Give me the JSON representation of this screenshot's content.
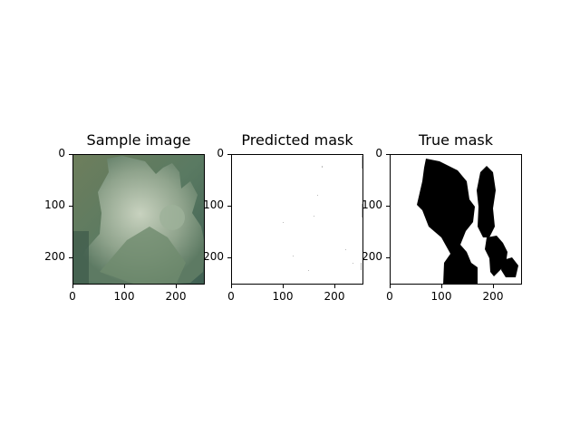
{
  "figure": {
    "panels": [
      {
        "title": "Sample image",
        "kind": "photo",
        "x_ticks": [
          "0",
          "100",
          "200"
        ],
        "y_ticks": [
          "0",
          "100",
          "200"
        ]
      },
      {
        "title": "Predicted mask",
        "kind": "predicted-mask",
        "x_ticks": [
          "0",
          "100",
          "200"
        ],
        "y_ticks": [
          "0",
          "100",
          "200"
        ]
      },
      {
        "title": "True mask",
        "kind": "true-mask",
        "x_ticks": [
          "0",
          "100",
          "200"
        ],
        "y_ticks": [
          "0",
          "100",
          "200"
        ]
      }
    ]
  },
  "chart_data": [
    {
      "type": "heatmap",
      "title": "Sample image",
      "xlim": [
        0,
        256
      ],
      "ylim": [
        256,
        0
      ],
      "x_ticks": [
        0,
        100,
        200
      ],
      "y_ticks": [
        0,
        100,
        200
      ],
      "colors": {
        "leaf": "#5f7d63",
        "background": "#6b7d60",
        "highlight": "#d6dccb"
      }
    },
    {
      "type": "heatmap",
      "title": "Predicted mask",
      "xlim": [
        0,
        256
      ],
      "ylim": [
        256,
        0
      ],
      "x_ticks": [
        0,
        100,
        200
      ],
      "y_ticks": [
        0,
        100,
        200
      ],
      "colors": {
        "background": "#ffffff",
        "foreground": "#000000"
      }
    },
    {
      "type": "heatmap",
      "title": "True mask",
      "xlim": [
        0,
        256
      ],
      "ylim": [
        256,
        0
      ],
      "x_ticks": [
        0,
        100,
        200
      ],
      "y_ticks": [
        0,
        100,
        200
      ],
      "colors": {
        "background": "#ffffff",
        "foreground": "#000000"
      }
    }
  ]
}
